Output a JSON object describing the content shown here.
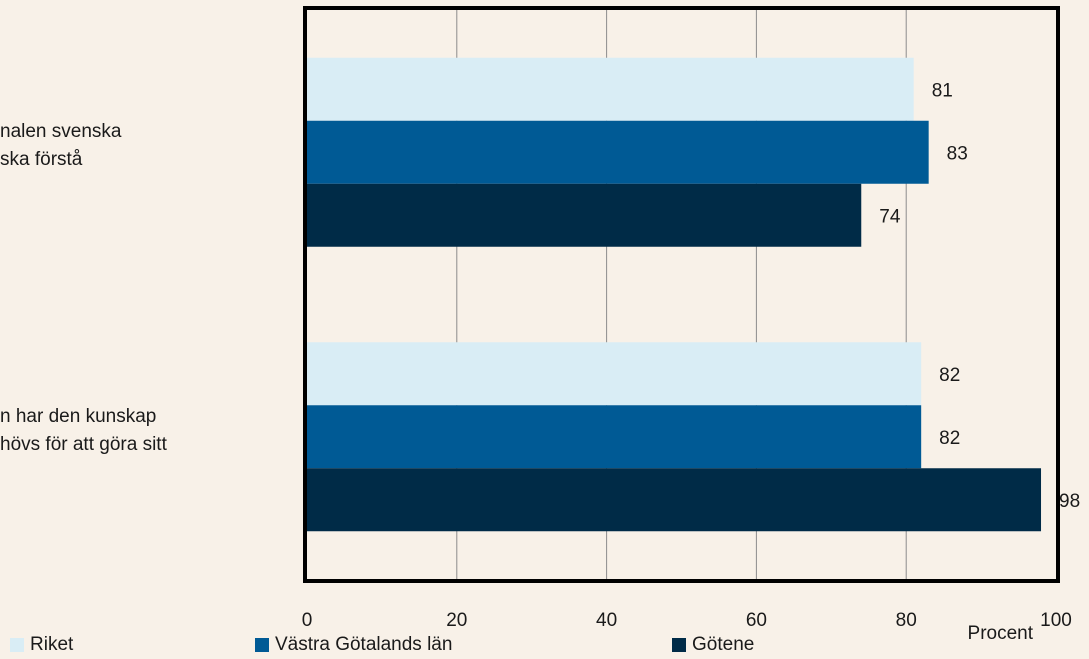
{
  "chart_data": {
    "type": "bar",
    "orientation": "horizontal",
    "categories": [
      "… nalen svenska … ska förstå",
      "… n har den kunskap … hövs för att göra sitt"
    ],
    "category_lines": [
      [
        "nalen svenska",
        "ska förstå"
      ],
      [
        "n har den kunskap",
        "hövs för att göra sitt"
      ]
    ],
    "series": [
      {
        "name": "Riket",
        "color": "#d9edf5",
        "values": [
          81,
          82
        ]
      },
      {
        "name": "Västra Götalands län",
        "color": "#005a95",
        "values": [
          83,
          82
        ]
      },
      {
        "name": "Götene",
        "color": "#002b47",
        "values": [
          74,
          98
        ]
      }
    ],
    "xlim": [
      0,
      100
    ],
    "xticks": [
      0,
      20,
      40,
      60,
      80,
      100
    ],
    "xlabel": "Procent",
    "grid": true,
    "legend": "bottom"
  }
}
